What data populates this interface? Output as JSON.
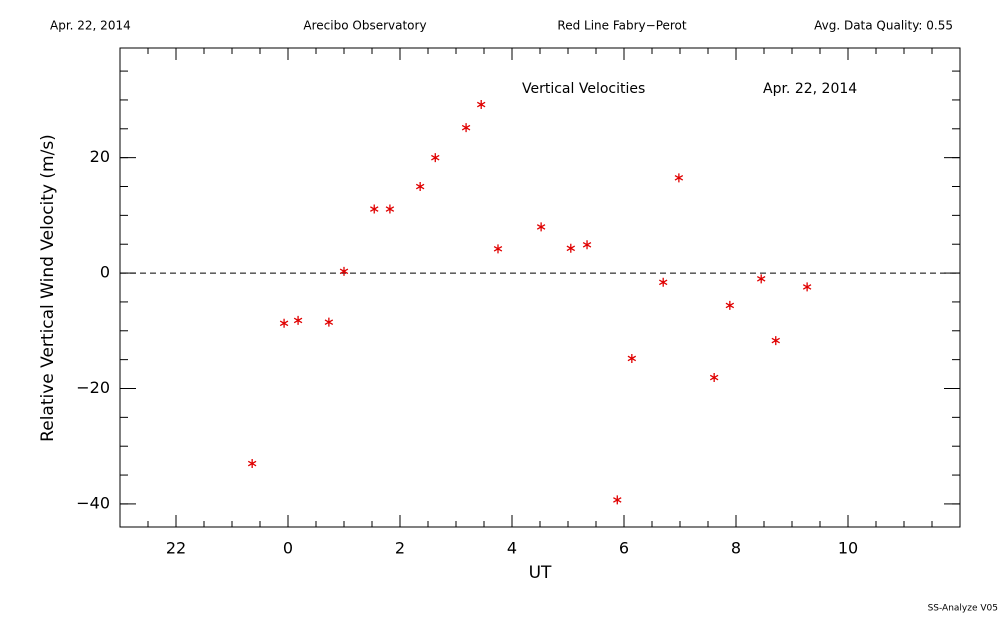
{
  "chart_data": {
    "type": "scatter",
    "header": [
      "Apr. 22, 2014",
      "Arecibo Observatory",
      "Red Line Fabry−Perot",
      "Avg. Data Quality: 0.55"
    ],
    "title": "Vertical Velocities",
    "date": "Apr. 22, 2014",
    "xlabel": "UT",
    "ylabel": "Relative Vertical Wind Velocity (m/s)",
    "footer": "SS-Analyze V05",
    "color": "#e00000",
    "x": [
      23.36,
      23.93,
      24.18,
      24.73,
      25.0,
      25.54,
      25.82,
      26.36,
      26.63,
      27.18,
      27.45,
      27.75,
      28.52,
      29.05,
      29.34,
      29.88,
      30.14,
      30.7,
      30.98,
      31.61,
      31.89,
      32.45,
      32.71,
      33.27
    ],
    "values": [
      -33.0,
      -8.7,
      -8.2,
      -8.5,
      0.3,
      11.1,
      11.1,
      15.0,
      20.0,
      25.2,
      29.2,
      4.2,
      8.0,
      4.3,
      4.9,
      -39.3,
      -14.8,
      -1.6,
      16.5,
      -18.1,
      -5.6,
      -1.0,
      -11.7,
      -2.4
    ],
    "xlim": [
      21,
      36
    ],
    "ylim": [
      -44,
      39
    ],
    "xticks": [
      22,
      {
        "value": 24,
        "label": "0"
      },
      {
        "value": 26,
        "label": "2"
      },
      {
        "value": 28,
        "label": "4"
      },
      {
        "value": 30,
        "label": "6"
      },
      {
        "value": 32,
        "label": "8"
      },
      {
        "value": 34,
        "label": "10"
      }
    ],
    "yticks": [
      {
        "value": -40,
        "label": "−40"
      },
      {
        "value": -20,
        "label": "−20"
      },
      0,
      20
    ],
    "xminor": 0.5,
    "yminor": 5,
    "hline": 0
  }
}
